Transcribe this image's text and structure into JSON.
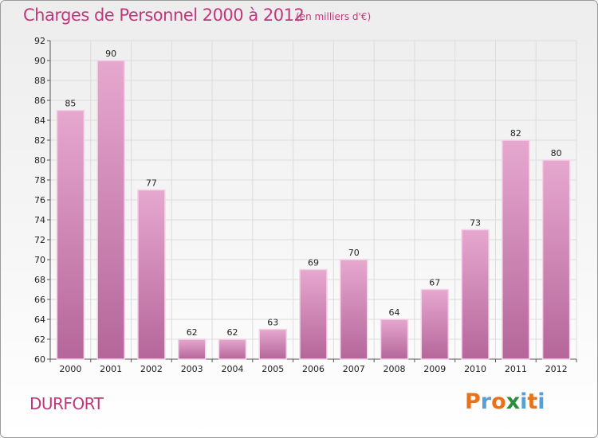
{
  "header": {
    "title": "Charges de Personnel 2000 à 2012",
    "subtitle": "(en milliers d'€)"
  },
  "footer": {
    "commune": "DURFORT",
    "logo": "Proxiti"
  },
  "colors": {
    "title": "#c0387a",
    "bar_top": "#e6a8cf",
    "bar_bottom": "#b5669a",
    "bar_edge": "#f3d3e6",
    "logo_letters": [
      "#e8711a",
      "#5a9fd4",
      "#e8711a",
      "#2e8b3c",
      "#5a9fd4",
      "#e8711a",
      "#5a9fd4"
    ]
  },
  "chart_data": {
    "type": "bar",
    "title": "Charges de Personnel 2000 à 2012",
    "subtitle": "(en milliers d'€)",
    "categories": [
      "2000",
      "2001",
      "2002",
      "2003",
      "2004",
      "2005",
      "2006",
      "2007",
      "2008",
      "2009",
      "2010",
      "2011",
      "2012"
    ],
    "values": [
      85,
      90,
      77,
      62,
      62,
      63,
      69,
      70,
      64,
      67,
      73,
      82,
      80
    ],
    "ylim": [
      60,
      92
    ],
    "yticks": [
      60,
      62,
      64,
      66,
      68,
      70,
      72,
      74,
      76,
      78,
      80,
      82,
      84,
      86,
      88,
      90,
      92
    ],
    "grid": true,
    "xlabel": "",
    "ylabel": ""
  }
}
